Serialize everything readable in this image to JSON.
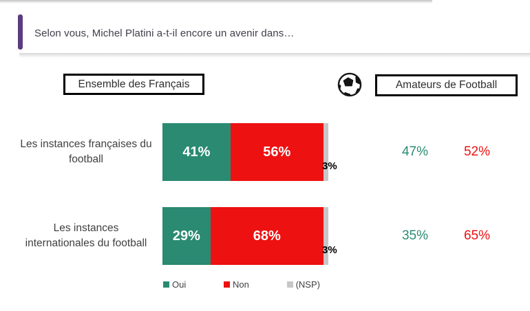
{
  "page": {
    "title": "Selon vous, Michel Platini a-t-il encore un avenir dans…"
  },
  "headers": {
    "left_box": "Ensemble des Français",
    "right_box": "Amateurs de Football",
    "icon": "soccer-ball"
  },
  "colors": {
    "oui": "#2A8A72",
    "non": "#EE1111",
    "nsp": "#C7C7C7",
    "accent_purple": "#5B3A7D",
    "title_text": "#3E3E4A",
    "label_text": "#404040"
  },
  "legend": {
    "items": [
      {
        "label": "Oui",
        "color": "#2A8A72"
      },
      {
        "label": "Non",
        "color": "#EE1111"
      },
      {
        "label": "(NSP)",
        "color": "#C7C7C7"
      }
    ]
  },
  "chart_data": {
    "type": "bar",
    "subtype": "horizontal-stacked",
    "unit": "%",
    "xlim": [
      0,
      100
    ],
    "legend_position": "bottom",
    "series_names": [
      "Oui",
      "Non",
      "(NSP)"
    ],
    "groups": [
      "Ensemble des Français",
      "Amateurs de Football"
    ],
    "rows": [
      {
        "category": "Les instances françaises du football",
        "label_lines": [
          "Les instances françaises du",
          "football"
        ],
        "ensemble": {
          "oui": 41,
          "non": 56,
          "nsp": 3
        },
        "amateurs": {
          "oui": 47,
          "non": 52
        }
      },
      {
        "category": "Les instances internationales du football",
        "label_lines": [
          "Les instances",
          "internationales du football"
        ],
        "ensemble": {
          "oui": 29,
          "non": 68,
          "nsp": 3
        },
        "amateurs": {
          "oui": 35,
          "non": 65
        }
      }
    ]
  }
}
